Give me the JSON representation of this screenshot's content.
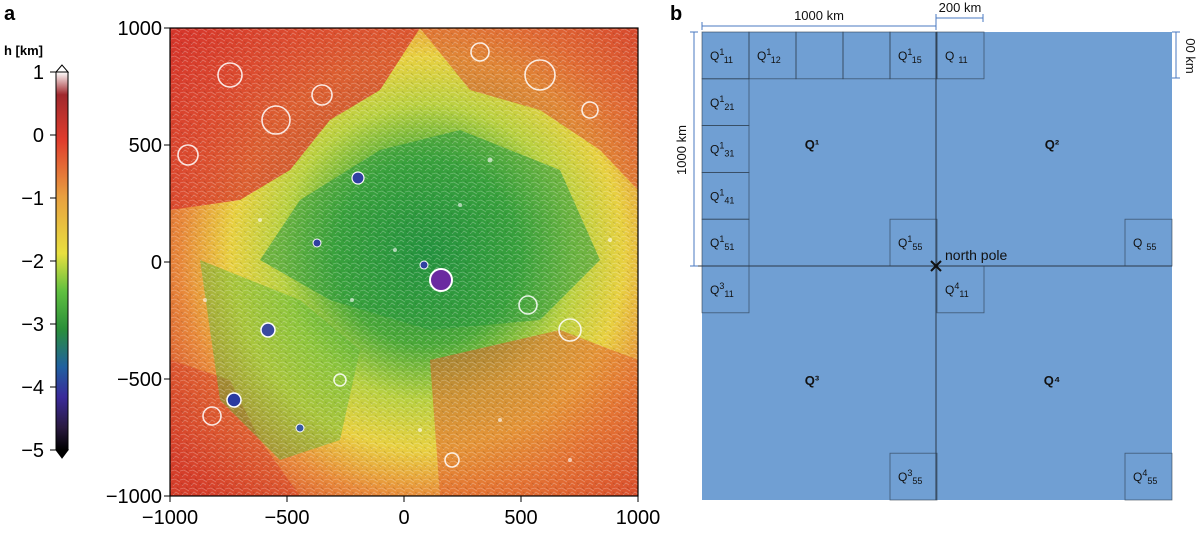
{
  "panel_a": {
    "letter": "a",
    "colorbar": {
      "title": "h [km]",
      "ticks": [
        "1",
        "0",
        "−1",
        "−2",
        "−3",
        "−4",
        "−5"
      ],
      "colors": [
        "#ffffff",
        "#a0282d",
        "#e03c2d",
        "#e8a040",
        "#e8e040",
        "#60c040",
        "#2a8f3a",
        "#2060a0",
        "#3a2a9a",
        "#2a1a40",
        "#000000"
      ]
    },
    "x_ticks": [
      "−1000",
      "−500",
      "0",
      "500",
      "1000"
    ],
    "y_ticks": [
      "1000",
      "500",
      "0",
      "−500",
      "−1000"
    ]
  },
  "panel_b": {
    "letter": "b",
    "dim_1000_top": "1000 km",
    "dim_200_top": "200 km",
    "dim_1000_left": "1000 km",
    "dim_200_right": "00 km",
    "north_pole": "north pole",
    "quadrants": [
      "Q¹",
      "Q²",
      "Q³",
      "Q⁴"
    ],
    "tiles": {
      "q1_11": {
        "base": "Q",
        "sup": "1",
        "sub": "11"
      },
      "q1_12": {
        "base": "Q",
        "sup": "1",
        "sub": "12"
      },
      "q1_15": {
        "base": "Q",
        "sup": "1",
        "sub": "15"
      },
      "q2_11": {
        "base": "Q",
        "sup": "",
        "sub": "11"
      },
      "q1_21": {
        "base": "Q",
        "sup": "1",
        "sub": "21"
      },
      "q1_31": {
        "base": "Q",
        "sup": "1",
        "sub": "31"
      },
      "q1_41": {
        "base": "Q",
        "sup": "1",
        "sub": "41"
      },
      "q1_51": {
        "base": "Q",
        "sup": "1",
        "sub": "51"
      },
      "q1_55": {
        "base": "Q",
        "sup": "1",
        "sub": "55"
      },
      "q2_55": {
        "base": "Q",
        "sup": "",
        "sub": "55"
      },
      "q3_11": {
        "base": "Q",
        "sup": "3",
        "sub": "11"
      },
      "q4_11": {
        "base": "Q",
        "sup": "4",
        "sub": "11"
      },
      "q3_55": {
        "base": "Q",
        "sup": "3",
        "sub": "55"
      },
      "q4_55": {
        "base": "Q",
        "sup": "4",
        "sub": "55"
      }
    },
    "fill_color": "#709fd3",
    "line_color": "#2b3a4a"
  }
}
